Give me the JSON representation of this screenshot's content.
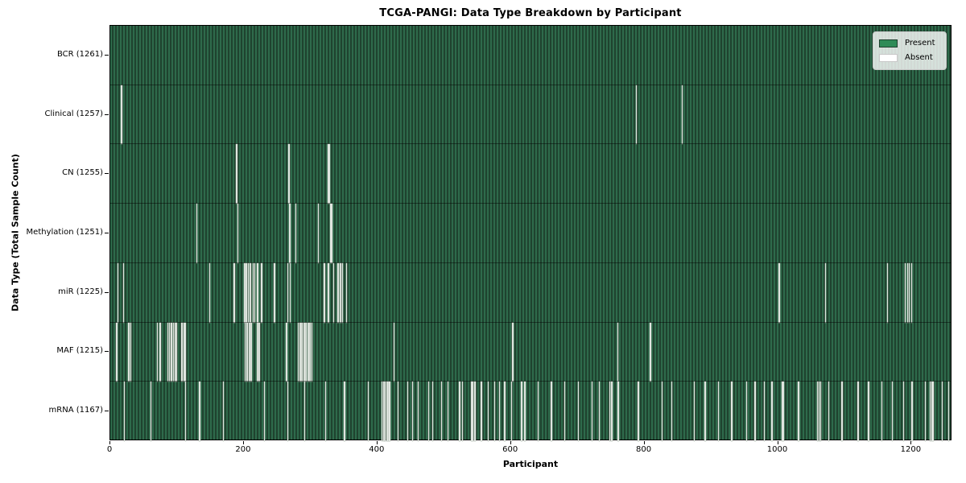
{
  "figure": {
    "title": "TCGA-PANGI: Data Type Breakdown by Participant",
    "xlabel": "Participant",
    "ylabel": "Data Type (Total Sample Count)"
  },
  "legend": {
    "items": [
      {
        "label": "Present",
        "color": "#2e8b57"
      },
      {
        "label": "Absent",
        "color": "#ffffff"
      }
    ]
  },
  "chart_data": {
    "type": "heatmap",
    "title": "TCGA-PANGI: Data Type Breakdown by Participant",
    "xlabel": "Participant",
    "ylabel": "Data Type (Total Sample Count)",
    "legend": [
      "Present",
      "Absent"
    ],
    "legend_position": "upper right",
    "grid": false,
    "n_participants": 1261,
    "xlim": [
      0,
      1261
    ],
    "xticks": [
      0,
      200,
      400,
      600,
      800,
      1000,
      1200
    ],
    "colors": {
      "present": "#2e8b57",
      "absent": "#ffffff",
      "bar_stripe_light": "#2e6a4b",
      "bar_stripe_dark": "#1f432f"
    },
    "rows": [
      {
        "label": "BCR",
        "total": 1261,
        "absent": []
      },
      {
        "label": "Clinical",
        "total": 1257,
        "absent": [
          16,
          17,
          787,
          856
        ]
      },
      {
        "label": "CN",
        "total": 1255,
        "absent": [
          188,
          189,
          267,
          326,
          327,
          328
        ]
      },
      {
        "label": "Methylation",
        "total": 1251,
        "absent": [
          129,
          190,
          268,
          269,
          277,
          311,
          329,
          330,
          331,
          332
        ]
      },
      {
        "label": "miR",
        "total": 1225,
        "absent": [
          11,
          19,
          148,
          185,
          200,
          201,
          203,
          206,
          208,
          210,
          213,
          216,
          220,
          226,
          245,
          265,
          269,
          320,
          326,
          334,
          340,
          341,
          343,
          345,
          347,
          353,
          1001,
          1002,
          1070,
          1071,
          1163,
          1190,
          1193,
          1196,
          1199,
          1200
        ]
      },
      {
        "label": "MAF",
        "total": 1215,
        "absent": [
          9,
          27,
          30,
          70,
          74,
          85,
          88,
          91,
          94,
          97,
          99,
          106,
          107,
          108,
          110,
          111,
          112,
          201,
          202,
          204,
          205,
          207,
          209,
          211,
          219,
          221,
          223,
          263,
          264,
          281,
          283,
          285,
          287,
          289,
          291,
          293,
          295,
          297,
          299,
          301,
          424,
          425,
          602,
          759,
          808,
          809
        ]
      },
      {
        "label": "mRNA",
        "total": 1167,
        "absent": [
          20,
          60,
          112,
          133,
          169,
          230,
          265,
          290,
          322,
          350,
          386,
          406,
          407,
          409,
          411,
          413,
          415,
          417,
          418,
          430,
          445,
          452,
          460,
          476,
          477,
          482,
          495,
          505,
          522,
          523,
          527,
          540,
          541,
          542,
          543,
          545,
          546,
          555,
          565,
          575,
          582,
          590,
          600,
          615,
          616,
          620,
          621,
          640,
          660,
          680,
          700,
          721,
          732,
          747,
          748,
          750,
          751,
          760,
          790,
          826,
          840,
          874,
          890,
          910,
          930,
          952,
          965,
          979,
          990,
          1006,
          1007,
          1008,
          1030,
          1058,
          1059,
          1061,
          1063,
          1064,
          1075,
          1095,
          1119,
          1135,
          1155,
          1170,
          1187,
          1200,
          1220,
          1227,
          1228,
          1230,
          1231,
          1232,
          1245,
          1255
        ]
      }
    ]
  }
}
